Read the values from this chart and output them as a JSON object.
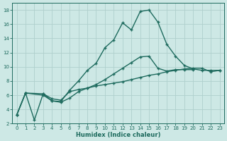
{
  "xlabel": "Humidex (Indice chaleur)",
  "bg_color": "#cde8e5",
  "grid_color": "#afd0cc",
  "line_color": "#1e6b5e",
  "xlim": [
    -0.5,
    23.5
  ],
  "ylim": [
    2,
    19
  ],
  "yticks": [
    2,
    4,
    6,
    8,
    10,
    12,
    14,
    16,
    18
  ],
  "xticks": [
    0,
    1,
    2,
    3,
    4,
    5,
    6,
    7,
    8,
    9,
    10,
    11,
    12,
    13,
    14,
    15,
    16,
    17,
    18,
    19,
    20,
    21,
    22,
    23
  ],
  "line1_x": [
    0,
    1,
    2,
    3,
    4,
    5,
    6,
    7,
    8,
    9,
    10,
    11,
    12,
    13,
    14,
    15,
    16,
    17,
    18,
    19,
    20,
    21,
    22,
    23
  ],
  "line1_y": [
    3.2,
    6.3,
    2.5,
    6.2,
    5.2,
    5.1,
    6.7,
    8.0,
    9.5,
    10.5,
    12.7,
    13.8,
    16.2,
    15.2,
    17.8,
    18.0,
    16.3,
    13.2,
    11.5,
    10.2,
    9.7,
    9.5,
    9.5,
    9.5
  ],
  "line2_x": [
    0,
    1,
    3,
    4,
    5,
    6,
    7,
    8,
    9,
    10,
    11,
    12,
    13,
    14,
    15,
    16,
    17,
    18,
    19,
    20,
    21,
    22,
    23
  ],
  "line2_y": [
    3.2,
    6.3,
    6.2,
    5.5,
    5.3,
    6.5,
    6.8,
    7.0,
    7.3,
    7.5,
    7.7,
    7.9,
    8.2,
    8.5,
    8.8,
    9.0,
    9.3,
    9.5,
    9.7,
    9.8,
    9.8,
    9.3,
    9.5
  ],
  "line3_x": [
    0,
    1,
    3,
    4,
    5,
    6,
    7,
    8,
    9,
    10,
    11,
    12,
    13,
    14,
    15,
    16,
    17,
    18,
    19,
    20
  ],
  "line3_y": [
    3.2,
    6.3,
    6.0,
    5.2,
    5.0,
    5.6,
    6.5,
    7.0,
    7.5,
    8.2,
    9.0,
    9.8,
    10.6,
    11.4,
    11.5,
    9.8,
    9.4,
    9.6,
    9.6,
    9.6
  ],
  "marker": "+",
  "markersize": 3.5,
  "linewidth": 1.0
}
